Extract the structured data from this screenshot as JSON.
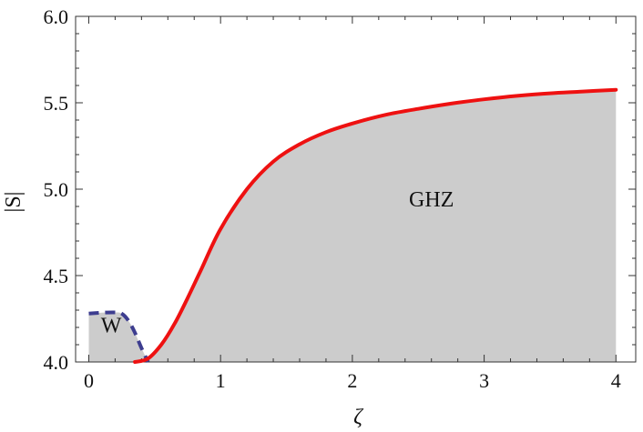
{
  "chart_data": {
    "type": "area",
    "title": "",
    "xlabel": "ζ",
    "ylabel": "|S|",
    "xlim": [
      -0.1,
      4.15
    ],
    "ylim": [
      4.0,
      6.0
    ],
    "x_ticks": [
      "0",
      "1",
      "2",
      "3",
      "4"
    ],
    "y_ticks": [
      "4.0",
      "4.5",
      "5.0",
      "5.5",
      "6.0"
    ],
    "grid": false,
    "fill_color": "#cccccc",
    "annotations": [
      {
        "text": "W",
        "x": 0.17,
        "y": 4.17
      },
      {
        "text": "GHZ",
        "x": 2.6,
        "y": 4.9
      }
    ],
    "series": [
      {
        "style": "dashed",
        "color": "#3d3d8f",
        "x": [
          0.0,
          0.1,
          0.2,
          0.25,
          0.3,
          0.35,
          0.4,
          0.45
        ],
        "y": [
          4.28,
          4.285,
          4.287,
          4.28,
          4.24,
          4.17,
          4.08,
          4.0
        ]
      },
      {
        "style": "solid",
        "color": "#ee1111",
        "x": [
          0.35,
          0.45,
          0.55,
          0.65,
          0.75,
          0.85,
          1.0,
          1.2,
          1.4,
          1.6,
          1.8,
          2.0,
          2.25,
          2.5,
          2.75,
          3.0,
          3.25,
          3.5,
          3.75,
          4.0
        ],
        "y": [
          4.0,
          4.02,
          4.1,
          4.22,
          4.37,
          4.53,
          4.77,
          5.0,
          5.16,
          5.26,
          5.33,
          5.38,
          5.43,
          5.465,
          5.495,
          5.52,
          5.54,
          5.555,
          5.565,
          5.575
        ]
      }
    ]
  }
}
